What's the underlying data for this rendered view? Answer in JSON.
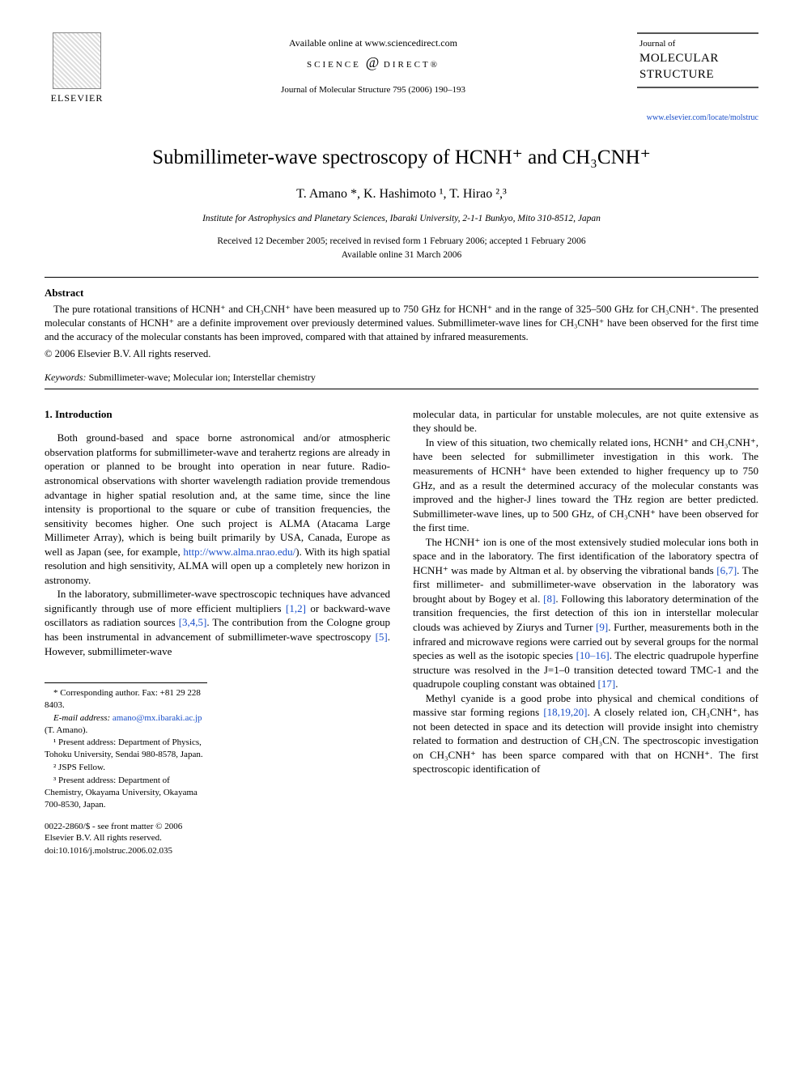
{
  "header": {
    "publisher_logo_label": "ELSEVIER",
    "available_online": "Available online at www.sciencedirect.com",
    "sd_logo_left": "SCIENCE",
    "sd_logo_right": "DIRECT®",
    "journal_ref": "Journal of Molecular Structure 795 (2006) 190–193",
    "journal_of": "Journal of",
    "journal_name_1": "MOLECULAR",
    "journal_name_2": "STRUCTURE",
    "journal_link": "www.elsevier.com/locate/molstruc"
  },
  "title": "Submillimeter-wave spectroscopy of HCNH⁺ and CH₃CNH⁺",
  "authors": "T. Amano *, K. Hashimoto ¹, T. Hirao ²,³",
  "affiliation": "Institute for Astrophysics and Planetary Sciences, Ibaraki University, 2-1-1 Bunkyo, Mito 310-8512, Japan",
  "dates_line1": "Received 12 December 2005; received in revised form 1 February 2006; accepted 1 February 2006",
  "dates_line2": "Available online 31 March 2006",
  "abstract": {
    "heading": "Abstract",
    "text": "The pure rotational transitions of HCNH⁺ and CH₃CNH⁺ have been measured up to 750 GHz for HCNH⁺ and in the range of 325–500 GHz for CH₃CNH⁺. The presented molecular constants of HCNH⁺ are a definite improvement over previously determined values. Submillimeter-wave lines for CH₃CNH⁺ have been observed for the first time and the accuracy of the molecular constants has been improved, compared with that attained by infrared measurements.",
    "copyright": "© 2006 Elsevier B.V. All rights reserved."
  },
  "keywords": {
    "label": "Keywords:",
    "text": " Submillimeter-wave; Molecular ion; Interstellar chemistry"
  },
  "section1": {
    "heading": "1. Introduction",
    "p1a": "Both ground-based and space borne astronomical and/or atmospheric observation platforms for submillimeter-wave and terahertz regions are already in operation or planned to be brought into operation in near future. Radio-astronomical observations with shorter wavelength radiation provide tremendous advantage in higher spatial resolution and, at the same time, since the line intensity is proportional to the square or cube of transition frequencies, the sensitivity becomes higher. One such project is ALMA (Atacama Large Millimeter Array), which is being built primarily by USA, Canada, Europe as well as Japan (see, for example, ",
    "p1_link": "http://www.alma.nrao.edu/",
    "p1b": "). With its high spatial resolution and high sensitivity, ALMA will open up a completely new horizon in astronomy.",
    "p2a": "In the laboratory, submillimeter-wave spectroscopic techniques have advanced significantly through use of more efficient multipliers ",
    "p2_ref1": "[1,2]",
    "p2b": " or backward-wave oscillators as radiation sources ",
    "p2_ref2": "[3,4,5]",
    "p2c": ". The contribution from the Cologne group has been instrumental in advancement of submillimeter-wave spectroscopy ",
    "p2_ref3": "[5]",
    "p2d": ". However, submillimeter-wave ",
    "p2e": "molecular data, in particular for unstable molecules, are not quite extensive as they should be.",
    "p3": "In view of this situation, two chemically related ions, HCNH⁺ and CH₃CNH⁺, have been selected for submillimeter investigation in this work. The measurements of HCNH⁺ have been extended to higher frequency up to 750 GHz, and as a result the determined accuracy of the molecular constants was improved and the higher-J lines toward the THz region are better predicted. Submillimeter-wave lines, up to 500 GHz, of CH₃CNH⁺ have been observed for the first time.",
    "p4a": "The HCNH⁺ ion is one of the most extensively studied molecular ions both in space and in the laboratory. The first identification of the laboratory spectra of HCNH⁺ was made by Altman et al. by observing the vibrational bands ",
    "p4_ref1": "[6,7]",
    "p4b": ". The first millimeter- and submillimeter-wave observation in the laboratory was brought about by Bogey et al. ",
    "p4_ref2": "[8]",
    "p4c": ". Following this laboratory determination of the transition frequencies, the first detection of this ion in interstellar molecular clouds was achieved by Ziurys and Turner ",
    "p4_ref3": "[9]",
    "p4d": ". Further, measurements both in the infrared and microwave regions were carried out by several groups for the normal species as well as the isotopic species ",
    "p4_ref4": "[10–16]",
    "p4e": ". The electric quadrupole hyperfine structure was resolved in the J=1–0 transition detected toward TMC-1 and the quadrupole coupling constant was obtained ",
    "p4_ref5": "[17]",
    "p4f": ".",
    "p5a": "Methyl cyanide is a good probe into physical and chemical conditions of massive star forming regions ",
    "p5_ref1": "[18,19,20]",
    "p5b": ". A closely related ion, CH₃CNH⁺, has not been detected in space and its detection will provide insight into chemistry related to formation and destruction of CH₃CN. The spectroscopic investigation on CH₃CNH⁺ has been sparce compared with that on HCNH⁺. The first spectroscopic identification of"
  },
  "footnotes": {
    "corresponding": "* Corresponding author. Fax: +81 29 228 8403.",
    "email_label": "E-mail address:",
    "email": "amano@mx.ibaraki.ac.jp",
    "email_suffix": " (T. Amano).",
    "fn1": "¹ Present address: Department of Physics, Tohoku University, Sendai 980-8578, Japan.",
    "fn2": "² JSPS Fellow.",
    "fn3": "³ Present address: Department of Chemistry, Okayama University, Okayama 700-8530, Japan.",
    "issn": "0022-2860/$ - see front matter © 2006 Elsevier B.V. All rights reserved.",
    "doi": "doi:10.1016/j.molstruc.2006.02.035"
  },
  "colors": {
    "link": "#1a4fc9",
    "text": "#000000",
    "background": "#ffffff"
  }
}
